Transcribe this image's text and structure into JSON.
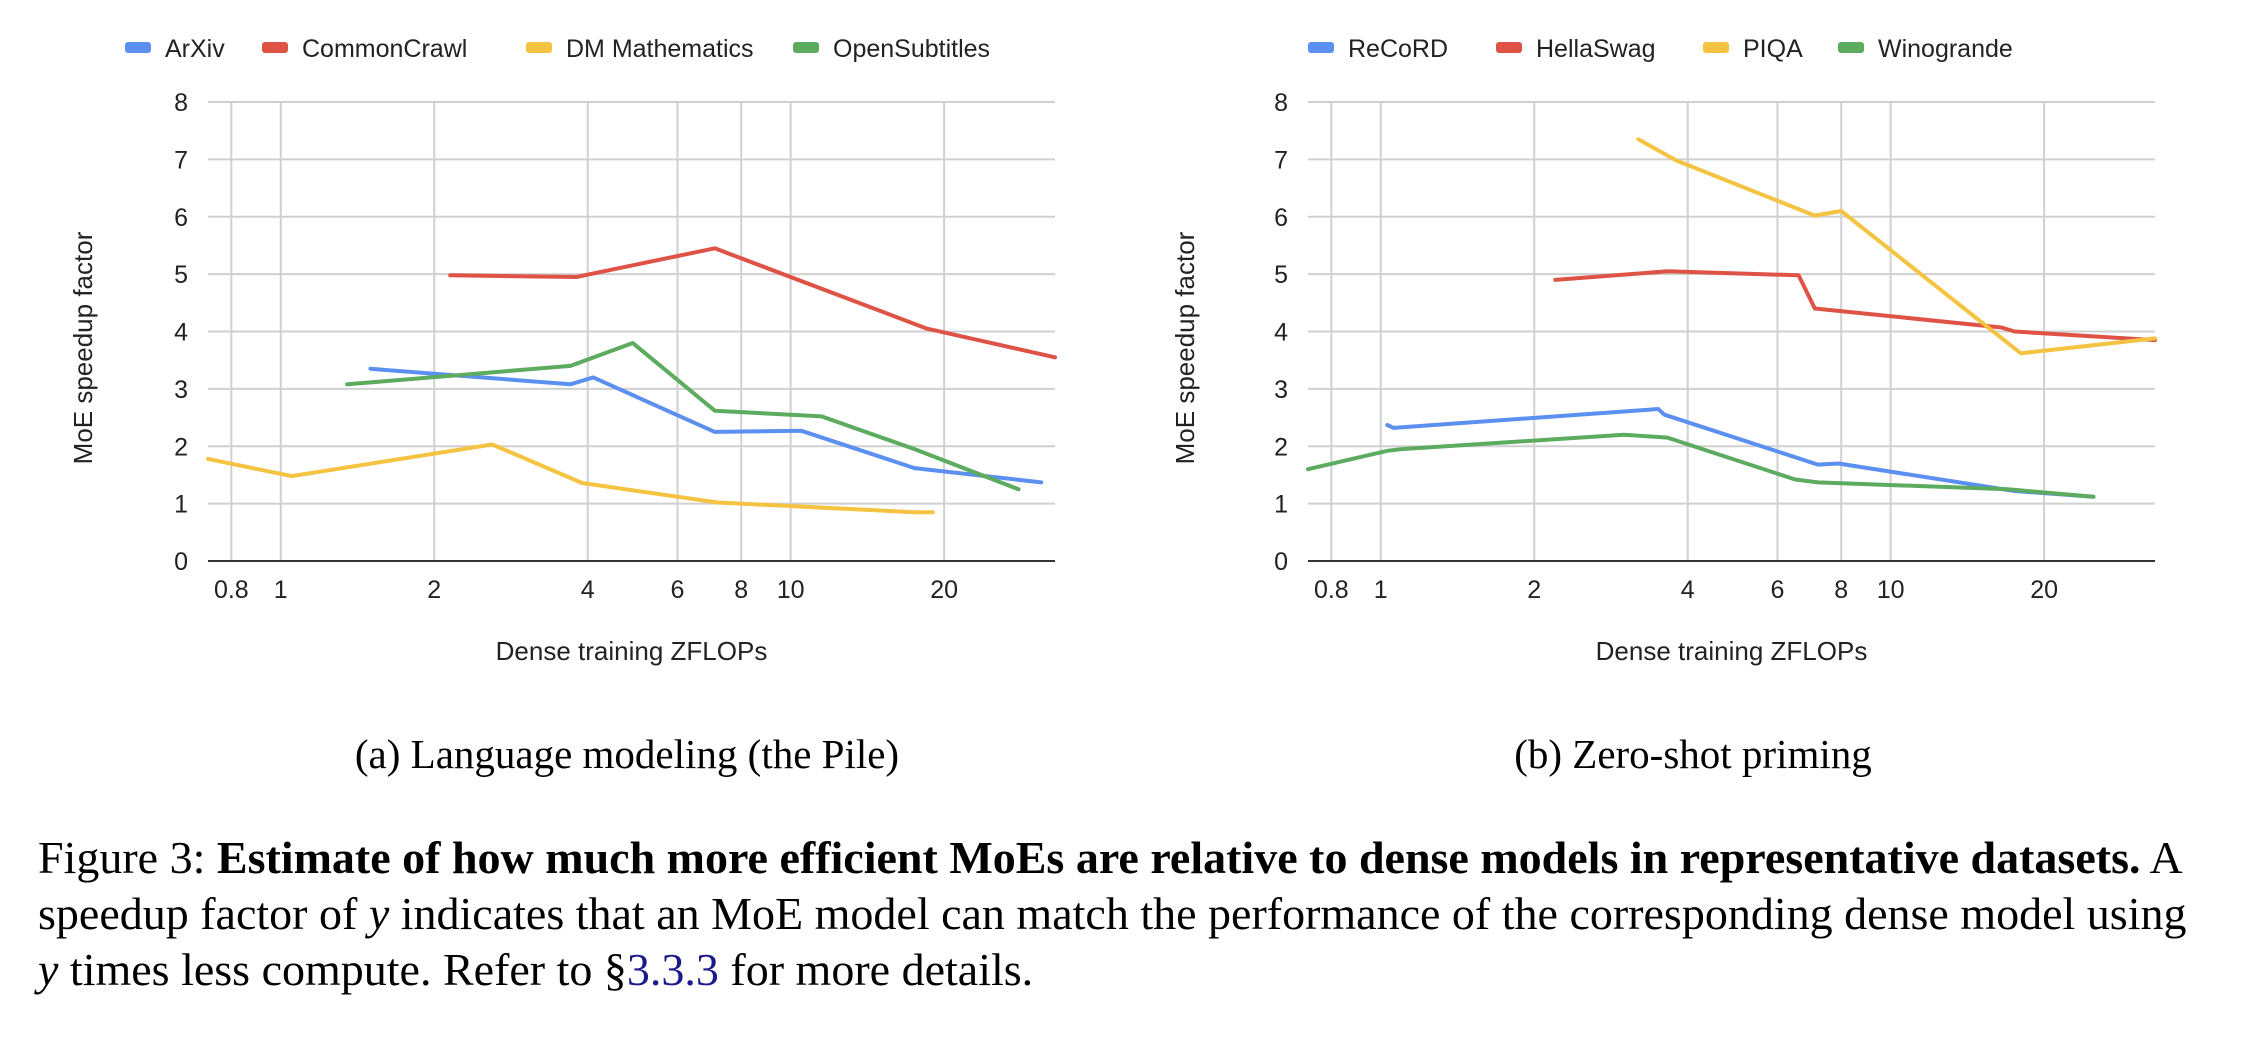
{
  "chart_data": [
    {
      "type": "line",
      "title": "",
      "xlabel": "Dense training ZFLOPs",
      "ylabel": "MoE speedup factor",
      "x_scale": "log",
      "xlim": [
        0.72,
        33
      ],
      "ylim": [
        0,
        8
      ],
      "yticks": [
        "0",
        "1",
        "2",
        "3",
        "4",
        "5",
        "6",
        "7",
        "8"
      ],
      "xticks": [
        {
          "value": 0.8,
          "label": "0.8"
        },
        {
          "value": 1,
          "label": "1"
        },
        {
          "value": 2,
          "label": "2"
        },
        {
          "value": 4,
          "label": "4"
        },
        {
          "value": 6,
          "label": "6"
        },
        {
          "value": 8,
          "label": "8"
        },
        {
          "value": 10,
          "label": "10"
        },
        {
          "value": 20,
          "label": "20"
        }
      ],
      "grid": true,
      "legend_position": "top-left",
      "series": [
        {
          "name": "ArXiv",
          "color": "#5b8ff0",
          "points": [
            [
              1.5,
              3.35
            ],
            [
              3.7,
              3.08
            ],
            [
              4.1,
              3.2
            ],
            [
              7.1,
              2.25
            ],
            [
              10.5,
              2.27
            ],
            [
              17.5,
              1.62
            ],
            [
              31,
              1.37
            ]
          ]
        },
        {
          "name": "CommonCrawl",
          "color": "#de5346",
          "points": [
            [
              2.15,
              4.98
            ],
            [
              3.8,
              4.95
            ],
            [
              7.1,
              5.45
            ],
            [
              18.5,
              4.05
            ],
            [
              33,
              3.55
            ]
          ]
        },
        {
          "name": "DM Mathematics",
          "color": "#f5c342",
          "points": [
            [
              0.72,
              1.78
            ],
            [
              1.05,
              1.48
            ],
            [
              2.6,
              2.03
            ],
            [
              3.9,
              1.36
            ],
            [
              7.2,
              1.02
            ],
            [
              17.5,
              0.85
            ],
            [
              19,
              0.85
            ]
          ]
        },
        {
          "name": "OpenSubtitles",
          "color": "#5cab5f",
          "points": [
            [
              1.35,
              3.08
            ],
            [
              3.7,
              3.4
            ],
            [
              4.9,
              3.8
            ],
            [
              7.1,
              2.62
            ],
            [
              11.5,
              2.52
            ],
            [
              17.5,
              1.95
            ],
            [
              28,
              1.25
            ]
          ]
        }
      ]
    },
    {
      "type": "line",
      "title": "",
      "xlabel": "Dense training ZFLOPs",
      "ylabel": "MoE speedup factor",
      "x_scale": "log",
      "xlim": [
        0.72,
        33
      ],
      "ylim": [
        0,
        8
      ],
      "yticks": [
        "0",
        "1",
        "2",
        "3",
        "4",
        "5",
        "6",
        "7",
        "8"
      ],
      "xticks": [
        {
          "value": 0.8,
          "label": "0.8"
        },
        {
          "value": 1,
          "label": "1"
        },
        {
          "value": 2,
          "label": "2"
        },
        {
          "value": 4,
          "label": "4"
        },
        {
          "value": 6,
          "label": "6"
        },
        {
          "value": 8,
          "label": "8"
        },
        {
          "value": 10,
          "label": "10"
        },
        {
          "value": 20,
          "label": "20"
        }
      ],
      "grid": true,
      "legend_position": "top-left",
      "series": [
        {
          "name": "ReCoRD",
          "color": "#5b8ff0",
          "points": [
            [
              1.03,
              2.37
            ],
            [
              1.06,
              2.32
            ],
            [
              3.5,
              2.65
            ],
            [
              3.6,
              2.55
            ],
            [
              7.2,
              1.68
            ],
            [
              7.9,
              1.7
            ],
            [
              17.5,
              1.22
            ],
            [
              25,
              1.12
            ]
          ]
        },
        {
          "name": "HellaSwag",
          "color": "#de5346",
          "points": [
            [
              2.2,
              4.9
            ],
            [
              3.65,
              5.05
            ],
            [
              6.6,
              4.98
            ],
            [
              7.1,
              4.4
            ],
            [
              16.5,
              4.07
            ],
            [
              17.5,
              4.0
            ],
            [
              33,
              3.85
            ]
          ]
        },
        {
          "name": "PIQA",
          "color": "#f5c342",
          "points": [
            [
              3.2,
              7.35
            ],
            [
              3.8,
              6.98
            ],
            [
              7.1,
              6.02
            ],
            [
              8.0,
              6.1
            ],
            [
              18,
              3.62
            ],
            [
              33,
              3.88
            ]
          ]
        },
        {
          "name": "Winogrande",
          "color": "#5cab5f",
          "points": [
            [
              0.72,
              1.6
            ],
            [
              1.03,
              1.92
            ],
            [
              1.1,
              1.95
            ],
            [
              3.0,
              2.2
            ],
            [
              3.65,
              2.15
            ],
            [
              6.5,
              1.42
            ],
            [
              7.2,
              1.37
            ],
            [
              17,
              1.25
            ],
            [
              25,
              1.12
            ]
          ]
        }
      ]
    }
  ],
  "subcaptions": {
    "a": "(a) Language modeling (the Pile)",
    "b": "(b) Zero-shot priming"
  },
  "caption": {
    "label": "Figure 3:",
    "bold": "Estimate of how much more efficient MoEs are relative to dense models in representative datasets.",
    "part1": "A speedup factor of",
    "var": "y",
    "part2": "indicates that an MoE model can match the performance of the corresponding dense model using",
    "part3": "times less compute. Refer to §",
    "ref": "3.3.3",
    "part4": "for more details."
  }
}
